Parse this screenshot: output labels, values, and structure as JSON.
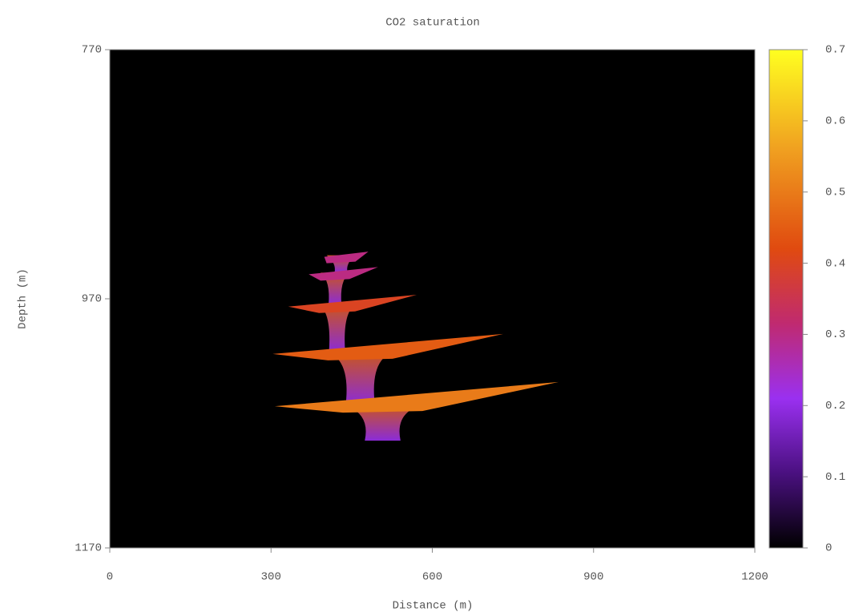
{
  "chart_data": {
    "type": "heatmap",
    "title": "CO2 saturation",
    "x_label": "Distance (m)",
    "y_label": "Depth (m)",
    "xlim": [
      0,
      1200
    ],
    "xticks": [
      0,
      300,
      600,
      900,
      1200
    ],
    "ylim": [
      1170,
      770
    ],
    "yticks": [
      770,
      970,
      1170
    ],
    "colorbar": {
      "lim": [
        0,
        0.7
      ],
      "ticks": [
        0,
        0.1,
        0.2,
        0.3,
        0.4,
        0.5,
        0.6,
        0.7
      ]
    },
    "plume": [
      {
        "depth": 935,
        "x": [
          399,
          481
        ],
        "saturation": 0.3
      },
      {
        "depth": 949,
        "x": [
          370,
          499
        ],
        "saturation": 0.3
      },
      {
        "depth": 975,
        "x": [
          332,
          571
        ],
        "saturation": 0.4
      },
      {
        "depth": 1013,
        "x": [
          303,
          732
        ],
        "saturation": 0.45
      },
      {
        "depth": 1055,
        "x": [
          307,
          835
        ],
        "saturation": 0.5
      }
    ]
  }
}
